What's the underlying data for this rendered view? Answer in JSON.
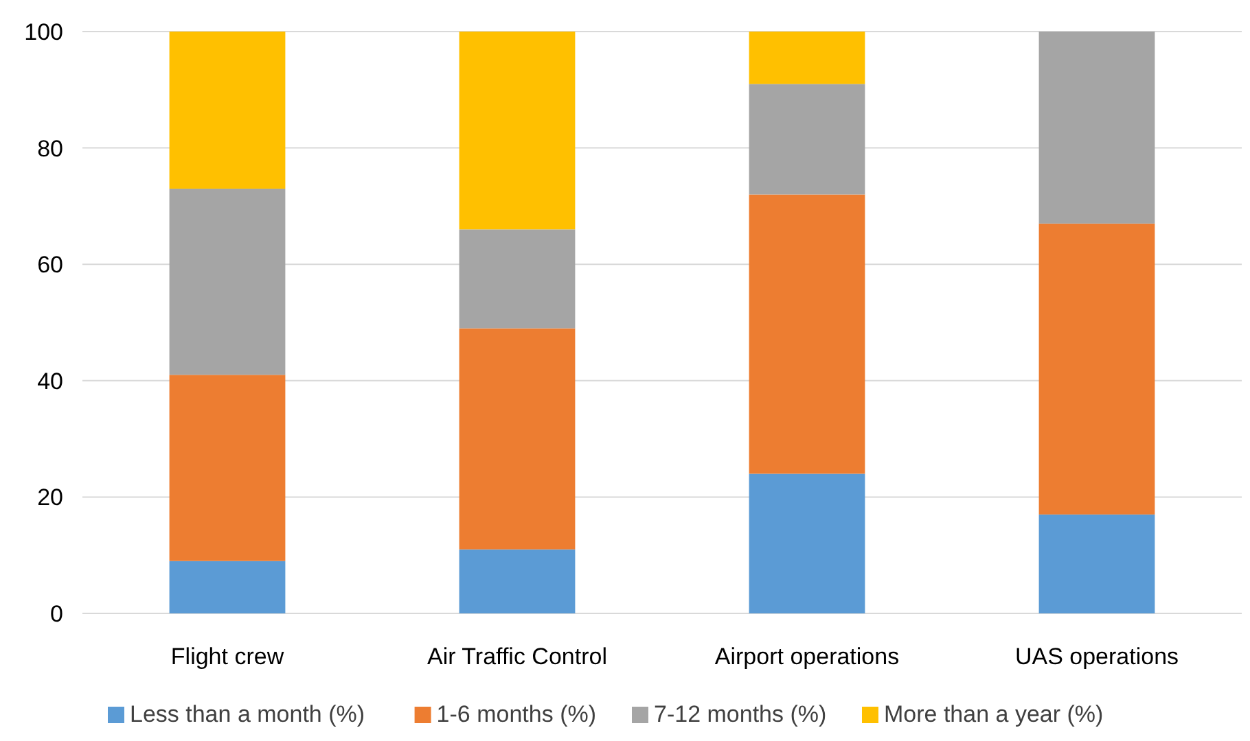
{
  "chart_data": {
    "type": "bar",
    "stacked": true,
    "categories": [
      "Flight crew",
      "Air Traffic Control",
      "Airport operations",
      "UAS operations"
    ],
    "series": [
      {
        "name": "Less than a month (%)",
        "color": "#5b9bd5",
        "values": [
          9,
          11,
          24,
          17
        ]
      },
      {
        "name": "1-6 months (%)",
        "color": "#ed7d31",
        "values": [
          32,
          38,
          48,
          50
        ]
      },
      {
        "name": "7-12 months (%)",
        "color": "#a5a5a5",
        "values": [
          32,
          17,
          19,
          33
        ]
      },
      {
        "name": "More than a year (%)",
        "color": "#ffc000",
        "values": [
          27,
          34,
          9,
          0
        ]
      }
    ],
    "ylim": [
      0,
      100
    ],
    "yticks": [
      0,
      20,
      40,
      60,
      80,
      100
    ],
    "grid": "y",
    "legend": "bottom"
  }
}
